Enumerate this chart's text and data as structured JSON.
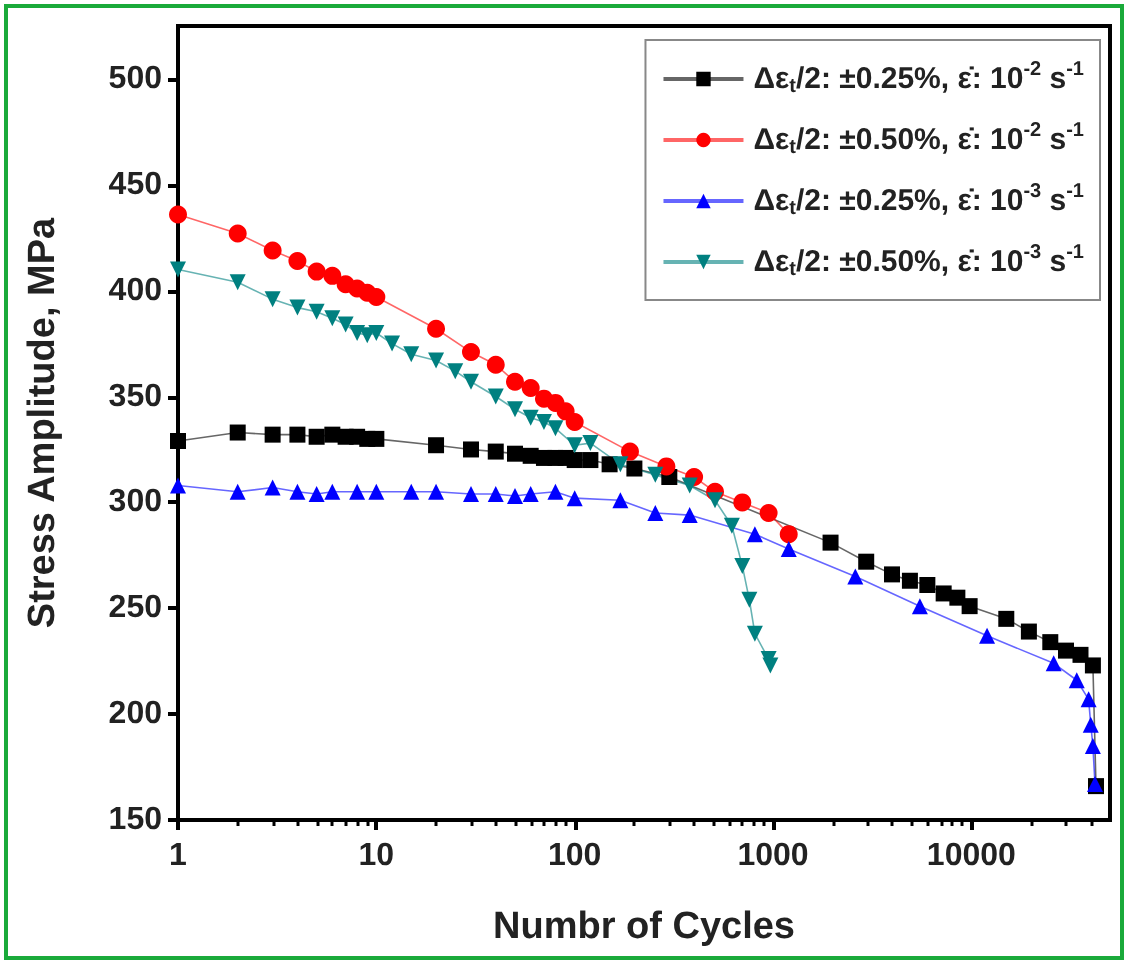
{
  "chart_data": {
    "type": "line",
    "xlabel": "Numbr of Cycles",
    "ylabel": "Stress Amplitude, MPa",
    "log": "x",
    "xlim": [
      1,
      50000
    ],
    "xticks": [
      1,
      10,
      100,
      1000,
      10000
    ],
    "ylim": [
      150,
      525
    ],
    "yticks": [
      150,
      200,
      250,
      300,
      350,
      400,
      450,
      500
    ],
    "grid": false,
    "legend": "top right",
    "series": [
      {
        "name": "Δε$_{t}$/2: ±0.25%, ε̇: 10$^{-2}$ s$^{-1}$",
        "color": "#000000",
        "marker": "square",
        "x": [
          1,
          2,
          3,
          4,
          5,
          6,
          7,
          8,
          9,
          10,
          20,
          30,
          40,
          50,
          60,
          70,
          80,
          90,
          100,
          120,
          150,
          200,
          300,
          1950,
          2950,
          3980,
          4900,
          6000,
          7250,
          8500,
          9800,
          15000,
          19500,
          25000,
          30000,
          35500,
          41000,
          42500
        ],
        "values": [
          329,
          333,
          332,
          332,
          331,
          332,
          331,
          331,
          330,
          330,
          327,
          325,
          324,
          323,
          322,
          321,
          321,
          321,
          320,
          320,
          318,
          316,
          312,
          281,
          272,
          266,
          263,
          261,
          257,
          255,
          251,
          245,
          239,
          234,
          230,
          228,
          223,
          166
        ]
      },
      {
        "name": "Δε$_{t}$/2: ±0.50%, ε̇: 10$^{-2}$ s$^{-1}$",
        "color": "#ff0000",
        "marker": "circle",
        "x": [
          1,
          2,
          3,
          4,
          5,
          6,
          7,
          8,
          9,
          10,
          20,
          30,
          40,
          50,
          60,
          70,
          80,
          90,
          100,
          190,
          290,
          400,
          510,
          700,
          950,
          1200
        ],
        "values": [
          436,
          427,
          419,
          414,
          409,
          407,
          403,
          401,
          399,
          397,
          382,
          371,
          365,
          357,
          354,
          349,
          347,
          343,
          338,
          324,
          317,
          312,
          305,
          300,
          295,
          285
        ]
      },
      {
        "name": "Δε$_{t}$/2: ±0.25%, ε̇: 10$^{-3}$ s$^{-1}$",
        "color": "#0000ff",
        "marker": "triangle",
        "x": [
          1,
          2,
          3,
          4,
          5,
          6,
          8,
          10,
          15,
          20,
          30,
          40,
          50,
          60,
          80,
          100,
          170,
          255,
          380,
          810,
          1200,
          2600,
          5500,
          12000,
          26000,
          34000,
          39000,
          40000,
          41000,
          42000
        ],
        "values": [
          308,
          305,
          307,
          305,
          304,
          305,
          305,
          305,
          305,
          305,
          304,
          304,
          303,
          304,
          305,
          302,
          301,
          295,
          294,
          285,
          278,
          265,
          251,
          237,
          224,
          216,
          207,
          195,
          185,
          167
        ]
      },
      {
        "name": "Δε$_{t}$/2: ±0.50%, ε̇: 10$^{-3}$ s$^{-1}$",
        "color": "#008080",
        "marker": "triangle-down",
        "x": [
          1,
          2,
          3,
          4,
          5,
          6,
          7,
          8,
          9,
          10,
          12,
          15,
          20,
          25,
          30,
          40,
          50,
          60,
          70,
          80,
          100,
          120,
          170,
          255,
          380,
          510,
          620,
          700,
          760,
          810,
          950,
          970
        ],
        "values": [
          410,
          404,
          396,
          392,
          390,
          387,
          384,
          380,
          379,
          380,
          375,
          370,
          367,
          362,
          357,
          350,
          344,
          340,
          338,
          335,
          327,
          328,
          318,
          313,
          308,
          301,
          289,
          270,
          254,
          238,
          226,
          223
        ]
      }
    ]
  }
}
